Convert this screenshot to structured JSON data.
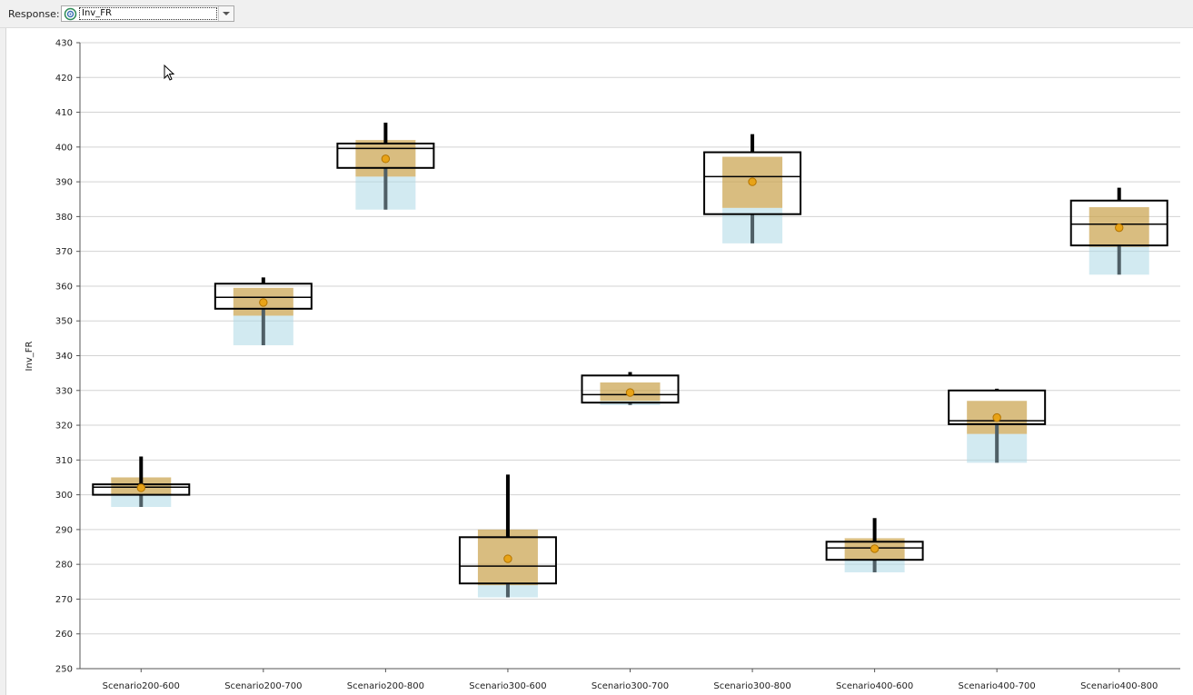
{
  "toolbar": {
    "response_label": "Response:",
    "response_value": "Inv_FR",
    "response_icon": "target-pin-icon",
    "dropdown_icon": "chevron-down-icon"
  },
  "colors": {
    "box_outline": "#000000",
    "tan_bar": "#c9a14a",
    "blue_bar": "#add8e6",
    "mean_point": "#e8a317",
    "grid": "#d3d3d3"
  },
  "chart_data": {
    "type": "box",
    "title": "",
    "xlabel": "",
    "ylabel": "Inv_FR",
    "ylim": [
      250,
      430
    ],
    "yticks": [
      250,
      260,
      270,
      280,
      290,
      300,
      310,
      320,
      330,
      340,
      350,
      360,
      370,
      380,
      390,
      400,
      410,
      420,
      430
    ],
    "grid": true,
    "categories": [
      "Scenario200-600",
      "Scenario200-700",
      "Scenario200-800",
      "Scenario300-600",
      "Scenario300-700",
      "Scenario300-800",
      "Scenario400-600",
      "Scenario400-700",
      "Scenario400-800"
    ],
    "items": [
      {
        "q1": 300.0,
        "median": 302.2,
        "q3": 303.0,
        "upper": 311.0,
        "lower": 296.5,
        "tan_top": 305.0,
        "tan_bottom": 300.0,
        "blue_top": 300.0,
        "blue_bottom": 296.5,
        "mean": 302.0
      },
      {
        "q1": 353.5,
        "median": 356.8,
        "q3": 360.7,
        "upper": 362.5,
        "lower": 343.0,
        "tan_top": 359.5,
        "tan_bottom": 351.5,
        "blue_top": 351.5,
        "blue_bottom": 343.0,
        "mean": 355.3
      },
      {
        "q1": 394.0,
        "median": 399.6,
        "q3": 401.0,
        "upper": 407.0,
        "lower": 382.0,
        "tan_top": 402.0,
        "tan_bottom": 391.5,
        "blue_top": 391.5,
        "blue_bottom": 382.0,
        "mean": 396.6
      },
      {
        "q1": 274.5,
        "median": 279.5,
        "q3": 287.8,
        "upper": 305.8,
        "lower": 270.5,
        "tan_top": 290.0,
        "tan_bottom": 274.0,
        "blue_top": 274.0,
        "blue_bottom": 270.5,
        "mean": 281.6
      },
      {
        "q1": 326.5,
        "median": 328.8,
        "q3": 334.3,
        "upper": 335.3,
        "lower": 325.8,
        "tan_top": 332.3,
        "tan_bottom": 327.0,
        "blue_top": 327.0,
        "blue_bottom": 325.8,
        "mean": 329.4
      },
      {
        "q1": 380.7,
        "median": 391.5,
        "q3": 398.5,
        "upper": 403.7,
        "lower": 372.3,
        "tan_top": 397.2,
        "tan_bottom": 382.5,
        "blue_top": 382.5,
        "blue_bottom": 372.3,
        "mean": 390.0
      },
      {
        "q1": 281.3,
        "median": 284.7,
        "q3": 286.5,
        "upper": 293.3,
        "lower": 277.7,
        "tan_top": 287.5,
        "tan_bottom": 281.3,
        "blue_top": 281.3,
        "blue_bottom": 277.7,
        "mean": 284.5
      },
      {
        "q1": 320.3,
        "median": 321.3,
        "q3": 330.0,
        "upper": 330.5,
        "lower": 309.2,
        "tan_top": 327.0,
        "tan_bottom": 317.5,
        "blue_top": 317.5,
        "blue_bottom": 309.2,
        "mean": 322.2
      },
      {
        "q1": 371.7,
        "median": 377.8,
        "q3": 384.6,
        "upper": 388.3,
        "lower": 363.3,
        "tan_top": 382.7,
        "tan_bottom": 371.3,
        "blue_top": 371.3,
        "blue_bottom": 363.3,
        "mean": 376.8
      }
    ]
  }
}
